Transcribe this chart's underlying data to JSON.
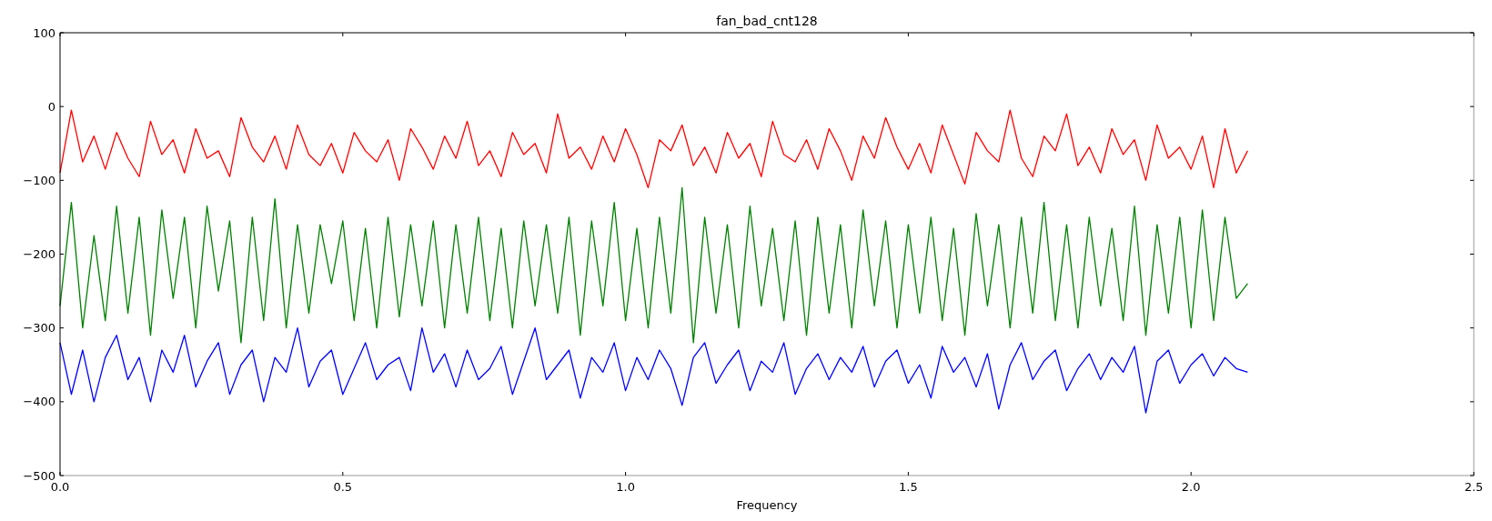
{
  "chart_data": {
    "type": "line",
    "title": "fan_bad_cnt128",
    "xlabel": "Frequency",
    "x": [
      0,
      0.02,
      0.04,
      0.06,
      0.08,
      0.1,
      0.12,
      0.14,
      0.16,
      0.18,
      0.2,
      0.22,
      0.24,
      0.26,
      0.28,
      0.3,
      0.32,
      0.34,
      0.36,
      0.38,
      0.4,
      0.42,
      0.44,
      0.46,
      0.48,
      0.5,
      0.52,
      0.54,
      0.56,
      0.58,
      0.6,
      0.62,
      0.64,
      0.66,
      0.68,
      0.7,
      0.72,
      0.74,
      0.76,
      0.78,
      0.8,
      0.82,
      0.84,
      0.86,
      0.88,
      0.9,
      0.92,
      0.94,
      0.96,
      0.98,
      1,
      1.02,
      1.04,
      1.06,
      1.08,
      1.1,
      1.12,
      1.14,
      1.16,
      1.18,
      1.2,
      1.22,
      1.24,
      1.26,
      1.28,
      1.3,
      1.32,
      1.34,
      1.36,
      1.38,
      1.4,
      1.42,
      1.44,
      1.46,
      1.48,
      1.5,
      1.52,
      1.54,
      1.56,
      1.58,
      1.6,
      1.62,
      1.64,
      1.66,
      1.68,
      1.7,
      1.72,
      1.74,
      1.76,
      1.78,
      1.8,
      1.82,
      1.84,
      1.86,
      1.88,
      1.9,
      1.92,
      1.94,
      1.96,
      1.98,
      2,
      2.02,
      2.04,
      2.06,
      2.08,
      2.1
    ],
    "series": [
      {
        "color": "#ff0000",
        "values": [
          -90,
          -5,
          -75,
          -40,
          -85,
          -35,
          -70,
          -95,
          -20,
          -65,
          -45,
          -90,
          -30,
          -70,
          -60,
          -95,
          -15,
          -55,
          -75,
          -40,
          -85,
          -25,
          -65,
          -80,
          -50,
          -90,
          -35,
          -60,
          -75,
          -45,
          -100,
          -30,
          -55,
          -85,
          -40,
          -70,
          -20,
          -80,
          -60,
          -95,
          -35,
          -65,
          -50,
          -90,
          -10,
          -70,
          -55,
          -85,
          -40,
          -75,
          -30,
          -65,
          -110,
          -45,
          -60,
          -25,
          -80,
          -55,
          -90,
          -35,
          -70,
          -50,
          -95,
          -20,
          -65,
          -75,
          -45,
          -85,
          -30,
          -60,
          -100,
          -40,
          -70,
          -15,
          -55,
          -85,
          -50,
          -90,
          -25,
          -65,
          -105,
          -35,
          -60,
          -75,
          -5,
          -70,
          -95,
          -40,
          -60,
          -10,
          -80,
          -55,
          -90,
          -30,
          -65,
          -45,
          -100,
          -25,
          -70,
          -55,
          -85,
          -40,
          -110,
          -30,
          -90,
          -60
        ]
      },
      {
        "color": "#008000",
        "values": [
          -270,
          -130,
          -300,
          -175,
          -290,
          -135,
          -280,
          -150,
          -310,
          -140,
          -260,
          -150,
          -300,
          -135,
          -250,
          -155,
          -320,
          -150,
          -290,
          -125,
          -300,
          -160,
          -280,
          -160,
          -240,
          -155,
          -290,
          -165,
          -300,
          -150,
          -285,
          -160,
          -270,
          -155,
          -300,
          -160,
          -280,
          -150,
          -290,
          -165,
          -300,
          -155,
          -270,
          -160,
          -280,
          -150,
          -310,
          -155,
          -270,
          -130,
          -290,
          -165,
          -300,
          -150,
          -280,
          -110,
          -320,
          -150,
          -280,
          -160,
          -300,
          -135,
          -270,
          -165,
          -290,
          -155,
          -310,
          -150,
          -280,
          -160,
          -300,
          -140,
          -270,
          -155,
          -300,
          -160,
          -280,
          -150,
          -290,
          -165,
          -310,
          -145,
          -270,
          -160,
          -300,
          -150,
          -280,
          -130,
          -290,
          -160,
          -300,
          -150,
          -270,
          -165,
          -290,
          -135,
          -310,
          -160,
          -280,
          -150,
          -300,
          -140,
          -290,
          -150,
          -260,
          -240
        ]
      },
      {
        "color": "#0000ff",
        "values": [
          -320,
          -390,
          -330,
          -400,
          -340,
          -310,
          -370,
          -340,
          -400,
          -330,
          -360,
          -310,
          -380,
          -345,
          -320,
          -390,
          -350,
          -330,
          -400,
          -340,
          -360,
          -300,
          -380,
          -345,
          -330,
          -390,
          -355,
          -320,
          -370,
          -350,
          -340,
          -385,
          -300,
          -360,
          -335,
          -380,
          -330,
          -370,
          -355,
          -325,
          -390,
          -345,
          -300,
          -370,
          -350,
          -330,
          -395,
          -340,
          -360,
          -320,
          -385,
          -340,
          -370,
          -330,
          -355,
          -405,
          -340,
          -320,
          -375,
          -350,
          -330,
          -385,
          -345,
          -360,
          -320,
          -390,
          -355,
          -335,
          -370,
          -340,
          -360,
          -325,
          -380,
          -345,
          -330,
          -375,
          -350,
          -395,
          -325,
          -360,
          -340,
          -380,
          -335,
          -410,
          -350,
          -320,
          -370,
          -345,
          -330,
          -385,
          -355,
          -335,
          -370,
          -340,
          -360,
          -325,
          -415,
          -345,
          -330,
          -375,
          -350,
          -335,
          -365,
          -340,
          -355,
          -360
        ]
      }
    ],
    "xlim": [
      0,
      2.5
    ],
    "xticks": [
      {
        "value": 0,
        "label": "0.0"
      },
      {
        "value": 0.5,
        "label": "0.5"
      },
      {
        "value": 1,
        "label": "1.0"
      },
      {
        "value": 1.5,
        "label": "1.5"
      },
      {
        "value": 2,
        "label": "2.0"
      },
      {
        "value": 2.5,
        "label": "2.5"
      }
    ],
    "ylim": [
      -500,
      100
    ],
    "yticks": [
      {
        "value": -500,
        "label": "−500"
      },
      {
        "value": -400,
        "label": "−400"
      },
      {
        "value": -300,
        "label": "−300"
      },
      {
        "value": -200,
        "label": "−200"
      },
      {
        "value": -100,
        "label": "−100"
      },
      0,
      100
    ]
  }
}
